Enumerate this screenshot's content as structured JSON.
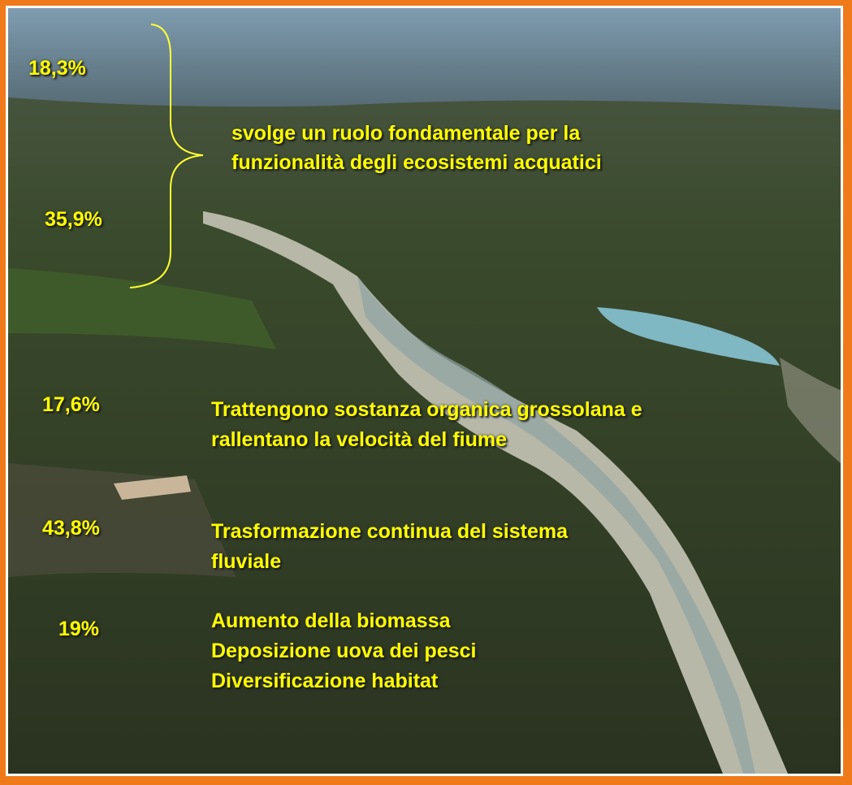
{
  "bracket_group": {
    "percentages": [
      "18,3%",
      "35,9%"
    ],
    "text": [
      "svolge un ruolo fondamentale per la",
      "funzionalità degli ecosistemi acquatici"
    ]
  },
  "rows": [
    {
      "percentage": "17,6%",
      "text": [
        "Trattengono sostanza organica grossolana e",
        "rallentano la velocità del fiume"
      ]
    },
    {
      "percentage": "43,8%",
      "text": [
        "Trasformazione continua del sistema",
        "fluviale"
      ]
    },
    {
      "percentage": "19%",
      "text": [
        "Aumento della biomassa",
        "Deposizione uova dei pesci",
        "Diversificazione habitat"
      ]
    }
  ]
}
